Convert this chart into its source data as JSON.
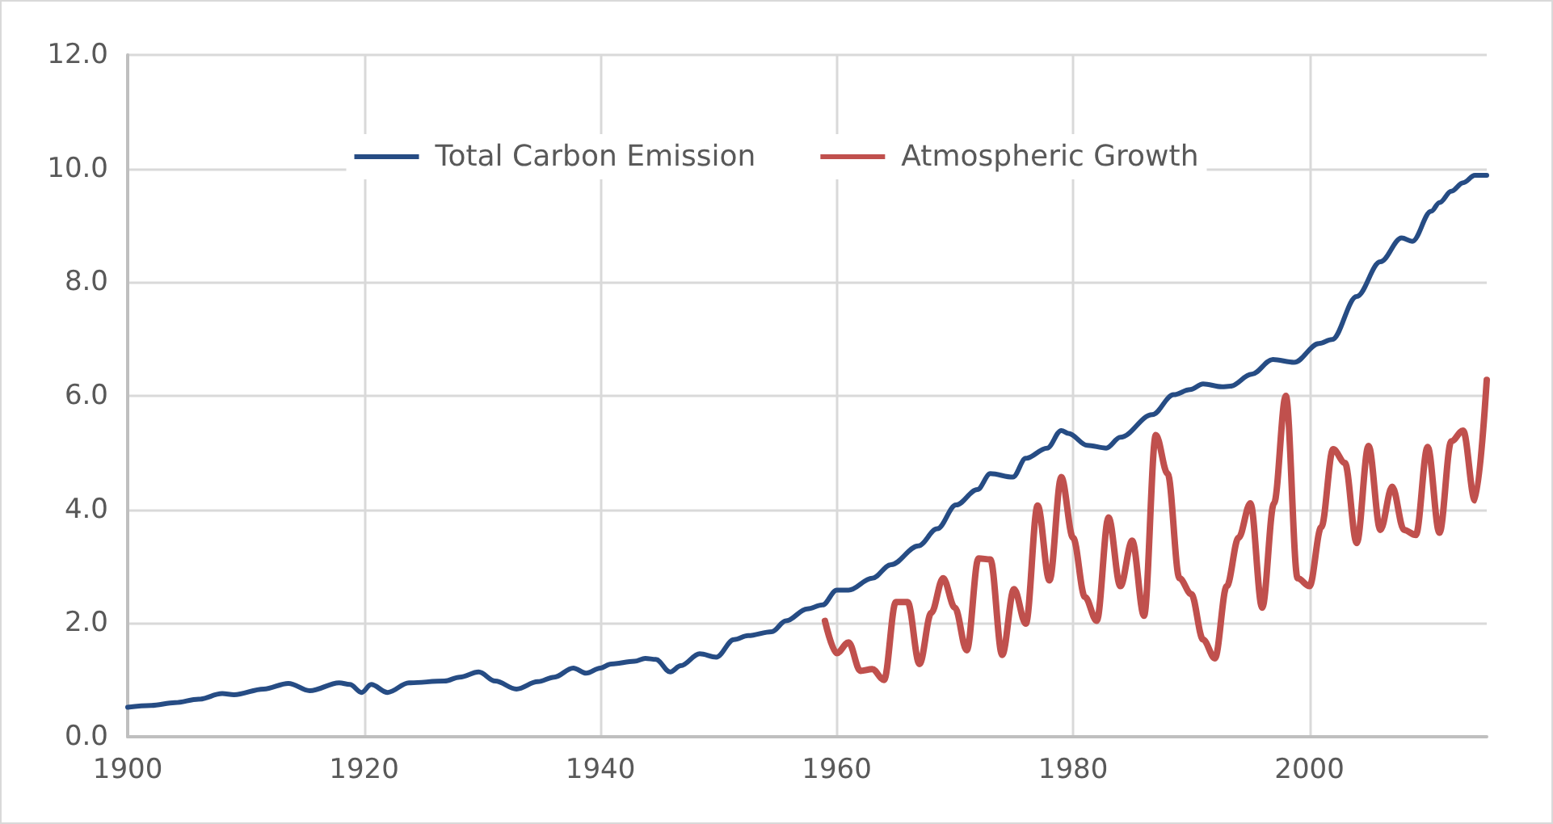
{
  "chart_data": {
    "type": "line",
    "xlim": [
      1900,
      2015
    ],
    "xticks": [
      1900,
      1920,
      1940,
      1960,
      1980,
      2000
    ],
    "ylim": [
      0,
      12
    ],
    "yticks": [
      {
        "value": 0,
        "label": "0.0"
      },
      {
        "value": 2,
        "label": "2.0"
      },
      {
        "value": 4,
        "label": "4.0"
      },
      {
        "value": 6,
        "label": "6.0"
      },
      {
        "value": 8,
        "label": "8.0"
      },
      {
        "value": 10,
        "label": "10.0"
      },
      {
        "value": 12,
        "label": "12.0"
      }
    ],
    "grid": true,
    "legend": "top",
    "marker": "none",
    "line_style": "solid",
    "series": [
      {
        "name": "Total Carbon Emission",
        "color": "#264c84",
        "x": [
          1900,
          1902,
          1904,
          1906,
          1908,
          1909,
          1911.5,
          1913.6,
          1915.4,
          1917.9,
          1918.8,
          1919.8,
          1920.6,
          1922,
          1923.8,
          1926.8,
          1928.1,
          1929.7,
          1931.1,
          1932.9,
          1934.7,
          1936.1,
          1937.7,
          1938.8,
          1940,
          1940.9,
          1942.9,
          1943.8,
          1944.7,
          1945.9,
          1946.8,
          1948.4,
          1949.8,
          1951.3,
          1952.5,
          1954.5,
          1955.7,
          1957.5,
          1958.8,
          1960,
          1961,
          1963,
          1964.6,
          1966.9,
          1968.5,
          1970.1,
          1971.9,
          1973,
          1974.9,
          1976,
          1977.8,
          1979,
          1979.6,
          1981.2,
          1982.8,
          1984,
          1986.7,
          1988.5,
          1989.9,
          1991,
          1992.6,
          1993.3,
          1995.1,
          1996.9,
          1998.7,
          2000.8,
          2001.9,
          2004,
          2006,
          2007.8,
          2008.7,
          2010.3,
          2011,
          2012,
          2013,
          2014,
          2015
        ],
        "values": [
          0.52,
          0.55,
          0.6,
          0.66,
          0.76,
          0.74,
          0.84,
          0.94,
          0.81,
          0.95,
          0.92,
          0.78,
          0.92,
          0.78,
          0.95,
          0.98,
          1.05,
          1.14,
          0.98,
          0.84,
          0.97,
          1.05,
          1.21,
          1.12,
          1.21,
          1.28,
          1.33,
          1.38,
          1.36,
          1.14,
          1.25,
          1.46,
          1.4,
          1.71,
          1.78,
          1.85,
          2.04,
          2.25,
          2.32,
          2.58,
          2.58,
          2.79,
          3.03,
          3.36,
          3.66,
          4.08,
          4.35,
          4.63,
          4.57,
          4.9,
          5.08,
          5.39,
          5.34,
          5.13,
          5.08,
          5.27,
          5.67,
          6.02,
          6.11,
          6.21,
          6.16,
          6.17,
          6.38,
          6.64,
          6.59,
          6.92,
          6.99,
          7.75,
          8.36,
          8.78,
          8.72,
          9.25,
          9.4,
          9.6,
          9.75,
          9.88,
          9.88
        ]
      },
      {
        "name": "Atmospheric Growth",
        "color": "#c0504d",
        "x": [
          1959,
          1960,
          1961,
          1962,
          1963,
          1964,
          1965,
          1966,
          1967,
          1968,
          1969,
          1970,
          1971,
          1972,
          1973,
          1974,
          1975,
          1976,
          1977,
          1978,
          1979,
          1980,
          1981,
          1982,
          1983,
          1984,
          1985,
          1986,
          1987,
          1988,
          1989,
          1990,
          1991,
          1992,
          1993,
          1994,
          1995,
          1996,
          1997,
          1998,
          1999,
          2000,
          2001,
          2002,
          2003,
          2004,
          2005,
          2006,
          2007,
          2008,
          2009,
          2010,
          2011,
          2012,
          2013,
          2014,
          2015
        ],
        "values": [
          2.04,
          1.47,
          1.66,
          1.16,
          1.19,
          1.0,
          2.37,
          2.37,
          1.28,
          2.18,
          2.79,
          2.27,
          1.52,
          3.14,
          3.12,
          1.44,
          2.6,
          1.99,
          4.07,
          2.75,
          4.57,
          3.5,
          2.46,
          2.04,
          3.86,
          2.65,
          3.45,
          2.13,
          5.31,
          4.63,
          2.79,
          2.51,
          1.71,
          1.38,
          2.65,
          3.5,
          4.11,
          2.27,
          4.11,
          6.0,
          2.79,
          2.65,
          3.69,
          5.06,
          4.82,
          3.41,
          5.12,
          3.64,
          4.4,
          3.64,
          3.55,
          5.1,
          3.59,
          5.2,
          5.39,
          4.16,
          6.28
        ]
      }
    ]
  }
}
